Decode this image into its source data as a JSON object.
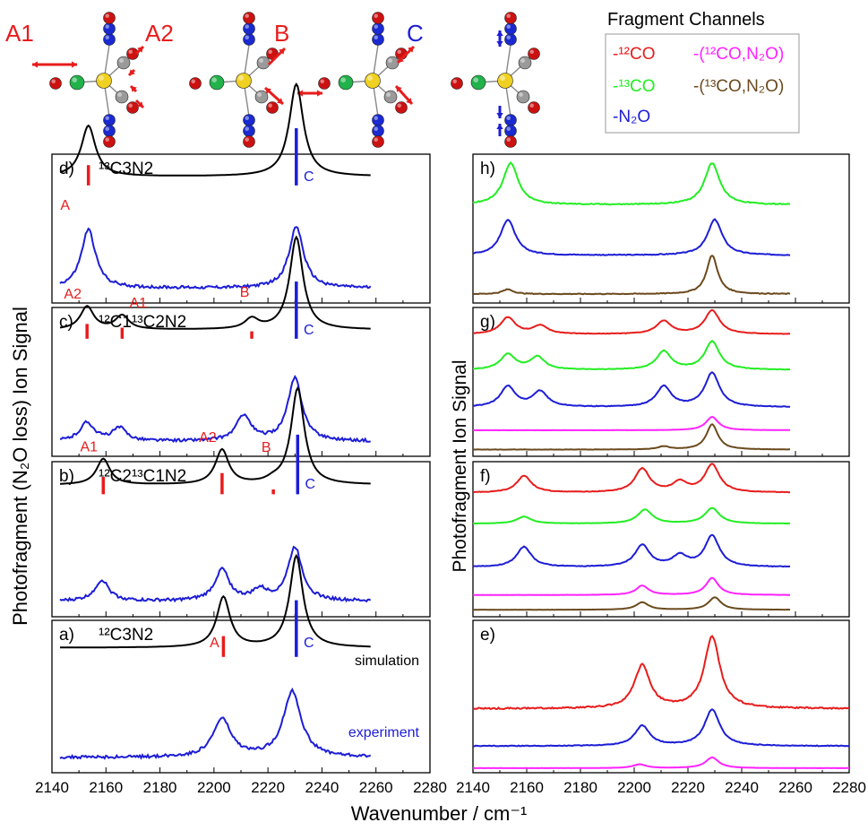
{
  "colors": {
    "red": "#e81c1c",
    "green": "#22ee22",
    "blue": "#1d1dd6",
    "magenta": "#ff22ff",
    "brown": "#6b4a1e",
    "black": "#000000",
    "oxygen": "#cc1111",
    "nitrogen": "#1a2ad0",
    "carbon": "#9a9a9a",
    "metal": "#f0d020",
    "carbon13": "#21b24a"
  },
  "modes": [
    {
      "label": "A1",
      "color": "red",
      "icon": "molecule-mode-a1-icon"
    },
    {
      "label": "A2",
      "color": "red",
      "icon": "molecule-mode-a2-icon"
    },
    {
      "label": "B",
      "color": "red",
      "icon": "molecule-mode-b-icon"
    },
    {
      "label": "C",
      "color": "blue",
      "icon": "molecule-mode-c-icon"
    }
  ],
  "legend": {
    "title": "Fragment Channels",
    "items": [
      {
        "text": "-¹²CO",
        "color": "red"
      },
      {
        "text": "-(¹²CO,N₂O)",
        "color": "magenta"
      },
      {
        "text": "-¹³CO",
        "color": "green"
      },
      {
        "text": "-(¹³CO,N₂O)",
        "color": "brown"
      },
      {
        "text": "-N₂O",
        "color": "blue"
      }
    ]
  },
  "axes": {
    "xlabel": "Wavenumber / cm⁻¹",
    "ylabel_left": "Photofragment (N₂O loss) Ion Signal",
    "ylabel_right": "Photofragment Ion Signal",
    "xlim": [
      2140,
      2280
    ],
    "xticks": [
      "2140",
      "2160",
      "2180",
      "2200",
      "2220",
      "2240",
      "2260",
      "2280"
    ]
  },
  "chart_data": [
    {
      "type": "line",
      "panel": "d)",
      "title": "¹³C3N2",
      "series": [
        {
          "role": "simulation",
          "color": "black",
          "baseline": 0.85,
          "scale": 0.62,
          "width": 3.2,
          "peaks": [
            [
              2153.5,
              0.55
            ],
            [
              2230.5,
              1.0
            ]
          ]
        },
        {
          "role": "experiment",
          "color": "blue",
          "baseline": 0.1,
          "scale": 0.48,
          "width": 3.2,
          "noise": 0.02,
          "peaks": [
            [
              2153.5,
              0.82
            ],
            [
              2230.5,
              0.86
            ]
          ]
        }
      ],
      "sticks": [
        {
          "x": 2153.5,
          "h": 0.22,
          "color": "red",
          "label": "A"
        },
        {
          "x": 2230.5,
          "h": 0.62,
          "color": "blue",
          "label": "C"
        }
      ]
    },
    {
      "type": "line",
      "panel": "c)",
      "title": "¹²C1¹³C2N2",
      "series": [
        {
          "role": "simulation",
          "color": "black",
          "baseline": 0.85,
          "scale": 0.62,
          "width": 3.0,
          "peaks": [
            [
              2153,
              0.25
            ],
            [
              2166,
              0.15
            ],
            [
              2214,
              0.11
            ],
            [
              2230.5,
              1.0
            ]
          ]
        },
        {
          "role": "experiment",
          "color": "blue",
          "baseline": 0.1,
          "scale": 0.48,
          "width": 3.2,
          "noise": 0.02,
          "peaks": [
            [
              2153,
              0.26
            ],
            [
              2165,
              0.18
            ],
            [
              2211,
              0.36
            ],
            [
              2230,
              0.88
            ]
          ]
        }
      ],
      "sticks": [
        {
          "x": 2153,
          "h": 0.16,
          "color": "red",
          "label": "A2"
        },
        {
          "x": 2166,
          "h": 0.12,
          "color": "red",
          "label": "A1"
        },
        {
          "x": 2214,
          "h": 0.08,
          "color": "red",
          "label": "B"
        },
        {
          "x": 2230.5,
          "h": 0.62,
          "color": "blue",
          "label": "C"
        }
      ]
    },
    {
      "type": "line",
      "panel": "b)",
      "title": "¹²C2¹³C1N2",
      "series": [
        {
          "role": "simulation",
          "color": "black",
          "baseline": 0.85,
          "scale": 0.62,
          "width": 3.0,
          "peaks": [
            [
              2159,
              0.27
            ],
            [
              2203,
              0.36
            ],
            [
              2222,
              0.03
            ],
            [
              2231,
              1.0
            ]
          ]
        },
        {
          "role": "experiment",
          "color": "blue",
          "baseline": 0.1,
          "scale": 0.48,
          "width": 3.2,
          "noise": 0.02,
          "peaks": [
            [
              2158.5,
              0.28
            ],
            [
              2203,
              0.42
            ],
            [
              2217,
              0.14
            ],
            [
              2230,
              0.72
            ]
          ]
        }
      ],
      "sticks": [
        {
          "x": 2159,
          "h": 0.18,
          "color": "red",
          "label": "A1"
        },
        {
          "x": 2203,
          "h": 0.22,
          "color": "red",
          "label": "A2"
        },
        {
          "x": 2222,
          "h": 0.05,
          "color": "red",
          "label": "B"
        },
        {
          "x": 2231,
          "h": 0.62,
          "color": "blue",
          "label": "C"
        }
      ]
    },
    {
      "type": "line",
      "panel": "a)",
      "title": "¹²C3N2",
      "series": [
        {
          "role": "simulation",
          "color": "black",
          "baseline": 0.82,
          "scale": 0.6,
          "width": 3.0,
          "peaks": [
            [
              2203.5,
              0.55
            ],
            [
              2230.5,
              1.0
            ]
          ],
          "label": "simulation"
        },
        {
          "role": "experiment",
          "color": "blue",
          "baseline": 0.1,
          "scale": 0.48,
          "width": 4.0,
          "noise": 0.02,
          "peaks": [
            [
              2203,
              0.52
            ],
            [
              2229,
              0.9
            ]
          ],
          "label": "experiment"
        }
      ],
      "sticks": [
        {
          "x": 2203.5,
          "h": 0.22,
          "color": "red",
          "label": "A"
        },
        {
          "x": 2230.5,
          "h": 0.6,
          "color": "blue",
          "label": "C"
        }
      ]
    },
    {
      "type": "line",
      "panel": "h)",
      "xrange": [
        2140,
        2258
      ],
      "series": [
        {
          "color": "green",
          "baseline": 0.66,
          "scale": 0.28,
          "width": 3.4,
          "noise": 0.012,
          "peaks": [
            [
              2154,
              1.0
            ],
            [
              2229,
              1.0
            ]
          ]
        },
        {
          "color": "blue",
          "baseline": 0.32,
          "scale": 0.24,
          "width": 3.3,
          "noise": 0.012,
          "peaks": [
            [
              2153,
              1.0
            ],
            [
              2230,
              1.0
            ]
          ]
        },
        {
          "color": "brown",
          "baseline": 0.06,
          "scale": 0.26,
          "width": 2.5,
          "noise": 0.01,
          "peaks": [
            [
              2153,
              0.12
            ],
            [
              2229,
              1.0
            ]
          ]
        }
      ]
    },
    {
      "type": "line",
      "panel": "g)",
      "xrange": [
        2140,
        2258
      ],
      "series": [
        {
          "color": "red",
          "baseline": 0.82,
          "scale": 0.16,
          "width": 3.3,
          "noise": 0.01,
          "peaks": [
            [
              2153,
              0.7
            ],
            [
              2165,
              0.35
            ],
            [
              2211,
              0.55
            ],
            [
              2229,
              1.0
            ]
          ]
        },
        {
          "color": "green",
          "baseline": 0.58,
          "scale": 0.19,
          "width": 3.3,
          "noise": 0.01,
          "peaks": [
            [
              2153,
              0.55
            ],
            [
              2164,
              0.45
            ],
            [
              2211,
              0.65
            ],
            [
              2229,
              1.0
            ]
          ]
        },
        {
          "color": "blue",
          "baseline": 0.33,
          "scale": 0.23,
          "width": 3.3,
          "noise": 0.01,
          "peaks": [
            [
              2153,
              0.6
            ],
            [
              2165,
              0.45
            ],
            [
              2211,
              0.6
            ],
            [
              2229,
              1.0
            ]
          ]
        },
        {
          "color": "magenta",
          "baseline": 0.175,
          "scale": 0.09,
          "width": 2.8,
          "noise": 0.006,
          "peaks": [
            [
              2229,
              1.0
            ]
          ]
        },
        {
          "color": "brown",
          "baseline": 0.045,
          "scale": 0.17,
          "width": 2.6,
          "noise": 0.006,
          "peaks": [
            [
              2211,
              0.12
            ],
            [
              2229,
              1.0
            ]
          ]
        }
      ]
    },
    {
      "type": "line",
      "panel": "f)",
      "xrange": [
        2140,
        2258
      ],
      "series": [
        {
          "color": "red",
          "baseline": 0.8,
          "scale": 0.18,
          "width": 3.3,
          "noise": 0.01,
          "peaks": [
            [
              2159,
              0.6
            ],
            [
              2203,
              0.85
            ],
            [
              2217,
              0.35
            ],
            [
              2229,
              1.0
            ]
          ]
        },
        {
          "color": "green",
          "baseline": 0.6,
          "scale": 0.1,
          "width": 3.3,
          "noise": 0.008,
          "peaks": [
            [
              2159,
              0.45
            ],
            [
              2204,
              0.9
            ],
            [
              2229,
              1.0
            ]
          ]
        },
        {
          "color": "blue",
          "baseline": 0.32,
          "scale": 0.2,
          "width": 3.3,
          "noise": 0.01,
          "peaks": [
            [
              2159,
              0.65
            ],
            [
              2203,
              0.7
            ],
            [
              2217,
              0.35
            ],
            [
              2229,
              1.0
            ]
          ]
        },
        {
          "color": "magenta",
          "baseline": 0.14,
          "scale": 0.11,
          "width": 2.8,
          "noise": 0.006,
          "peaks": [
            [
              2203,
              0.55
            ],
            [
              2229,
              1.0
            ]
          ]
        },
        {
          "color": "brown",
          "baseline": 0.045,
          "scale": 0.08,
          "width": 2.8,
          "noise": 0.006,
          "peaks": [
            [
              2203,
              0.6
            ],
            [
              2230,
              1.0
            ]
          ]
        }
      ]
    },
    {
      "type": "line",
      "panel": "e)",
      "xrange": [
        2140,
        2280
      ],
      "series": [
        {
          "color": "red",
          "baseline": 0.42,
          "scale": 0.47,
          "width": 3.5,
          "noise": 0.01,
          "peaks": [
            [
              2203,
              0.6
            ],
            [
              2229,
              1.0
            ]
          ]
        },
        {
          "color": "blue",
          "baseline": 0.175,
          "scale": 0.24,
          "width": 3.4,
          "noise": 0.01,
          "peaks": [
            [
              2203,
              0.55
            ],
            [
              2229,
              1.0
            ]
          ]
        },
        {
          "color": "magenta",
          "baseline": 0.03,
          "scale": 0.07,
          "width": 3.0,
          "noise": 0.006,
          "peaks": [
            [
              2202,
              0.35
            ],
            [
              2229,
              1.0
            ]
          ]
        }
      ]
    }
  ]
}
